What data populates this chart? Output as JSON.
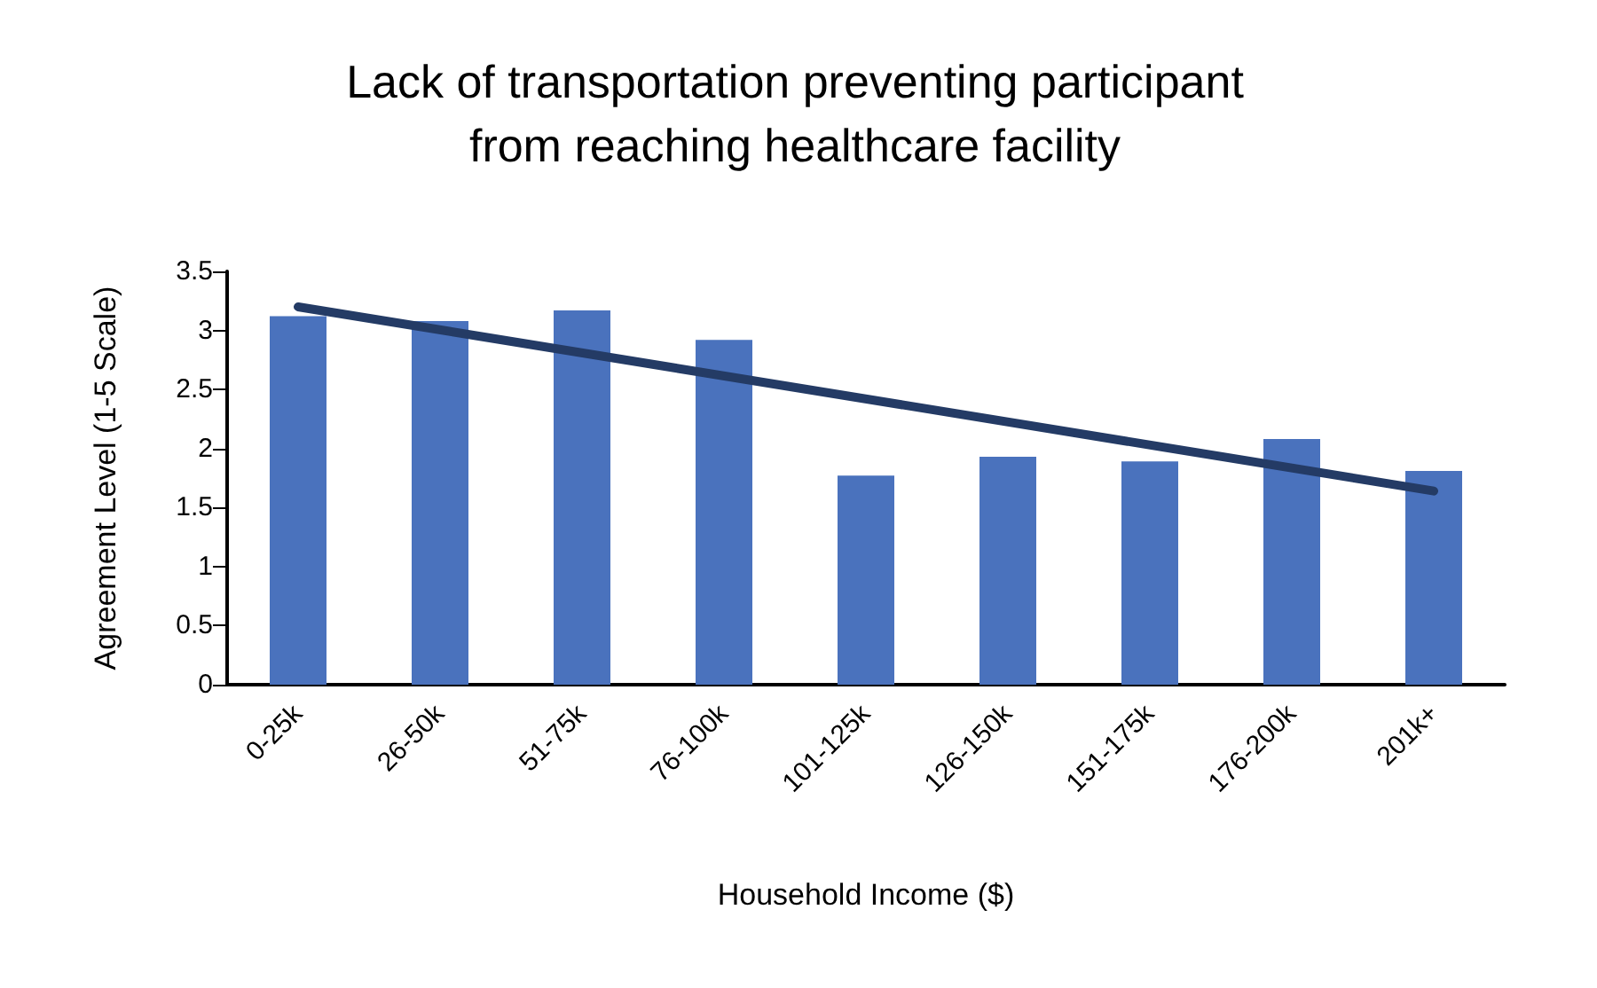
{
  "chart_data": {
    "type": "bar",
    "title": "Lack of transportation preventing participant\nfrom reaching healthcare facility",
    "xlabel": "Household Income ($)",
    "ylabel": "Agreement Level (1-5 Scale)",
    "categories": [
      "0-25k",
      "26-50k",
      "51-75k",
      "76-100k",
      "101-125k",
      "126-150k",
      "151-175k",
      "176-200k",
      "201k+"
    ],
    "series": [
      {
        "color": "#4a72bd",
        "values": [
          3.12,
          3.08,
          3.17,
          2.92,
          1.77,
          1.93,
          1.89,
          2.08,
          1.81
        ]
      },
      {
        "type": "line",
        "color": "#243b65",
        "x": [
          "0-25k",
          "201k+"
        ],
        "values": [
          3.2,
          1.64
        ]
      }
    ],
    "ylim": [
      0,
      3.5
    ],
    "yticks": [
      0,
      0.5,
      1,
      1.5,
      2,
      2.5,
      3,
      3.5
    ],
    "grid": false,
    "marker": "none"
  }
}
